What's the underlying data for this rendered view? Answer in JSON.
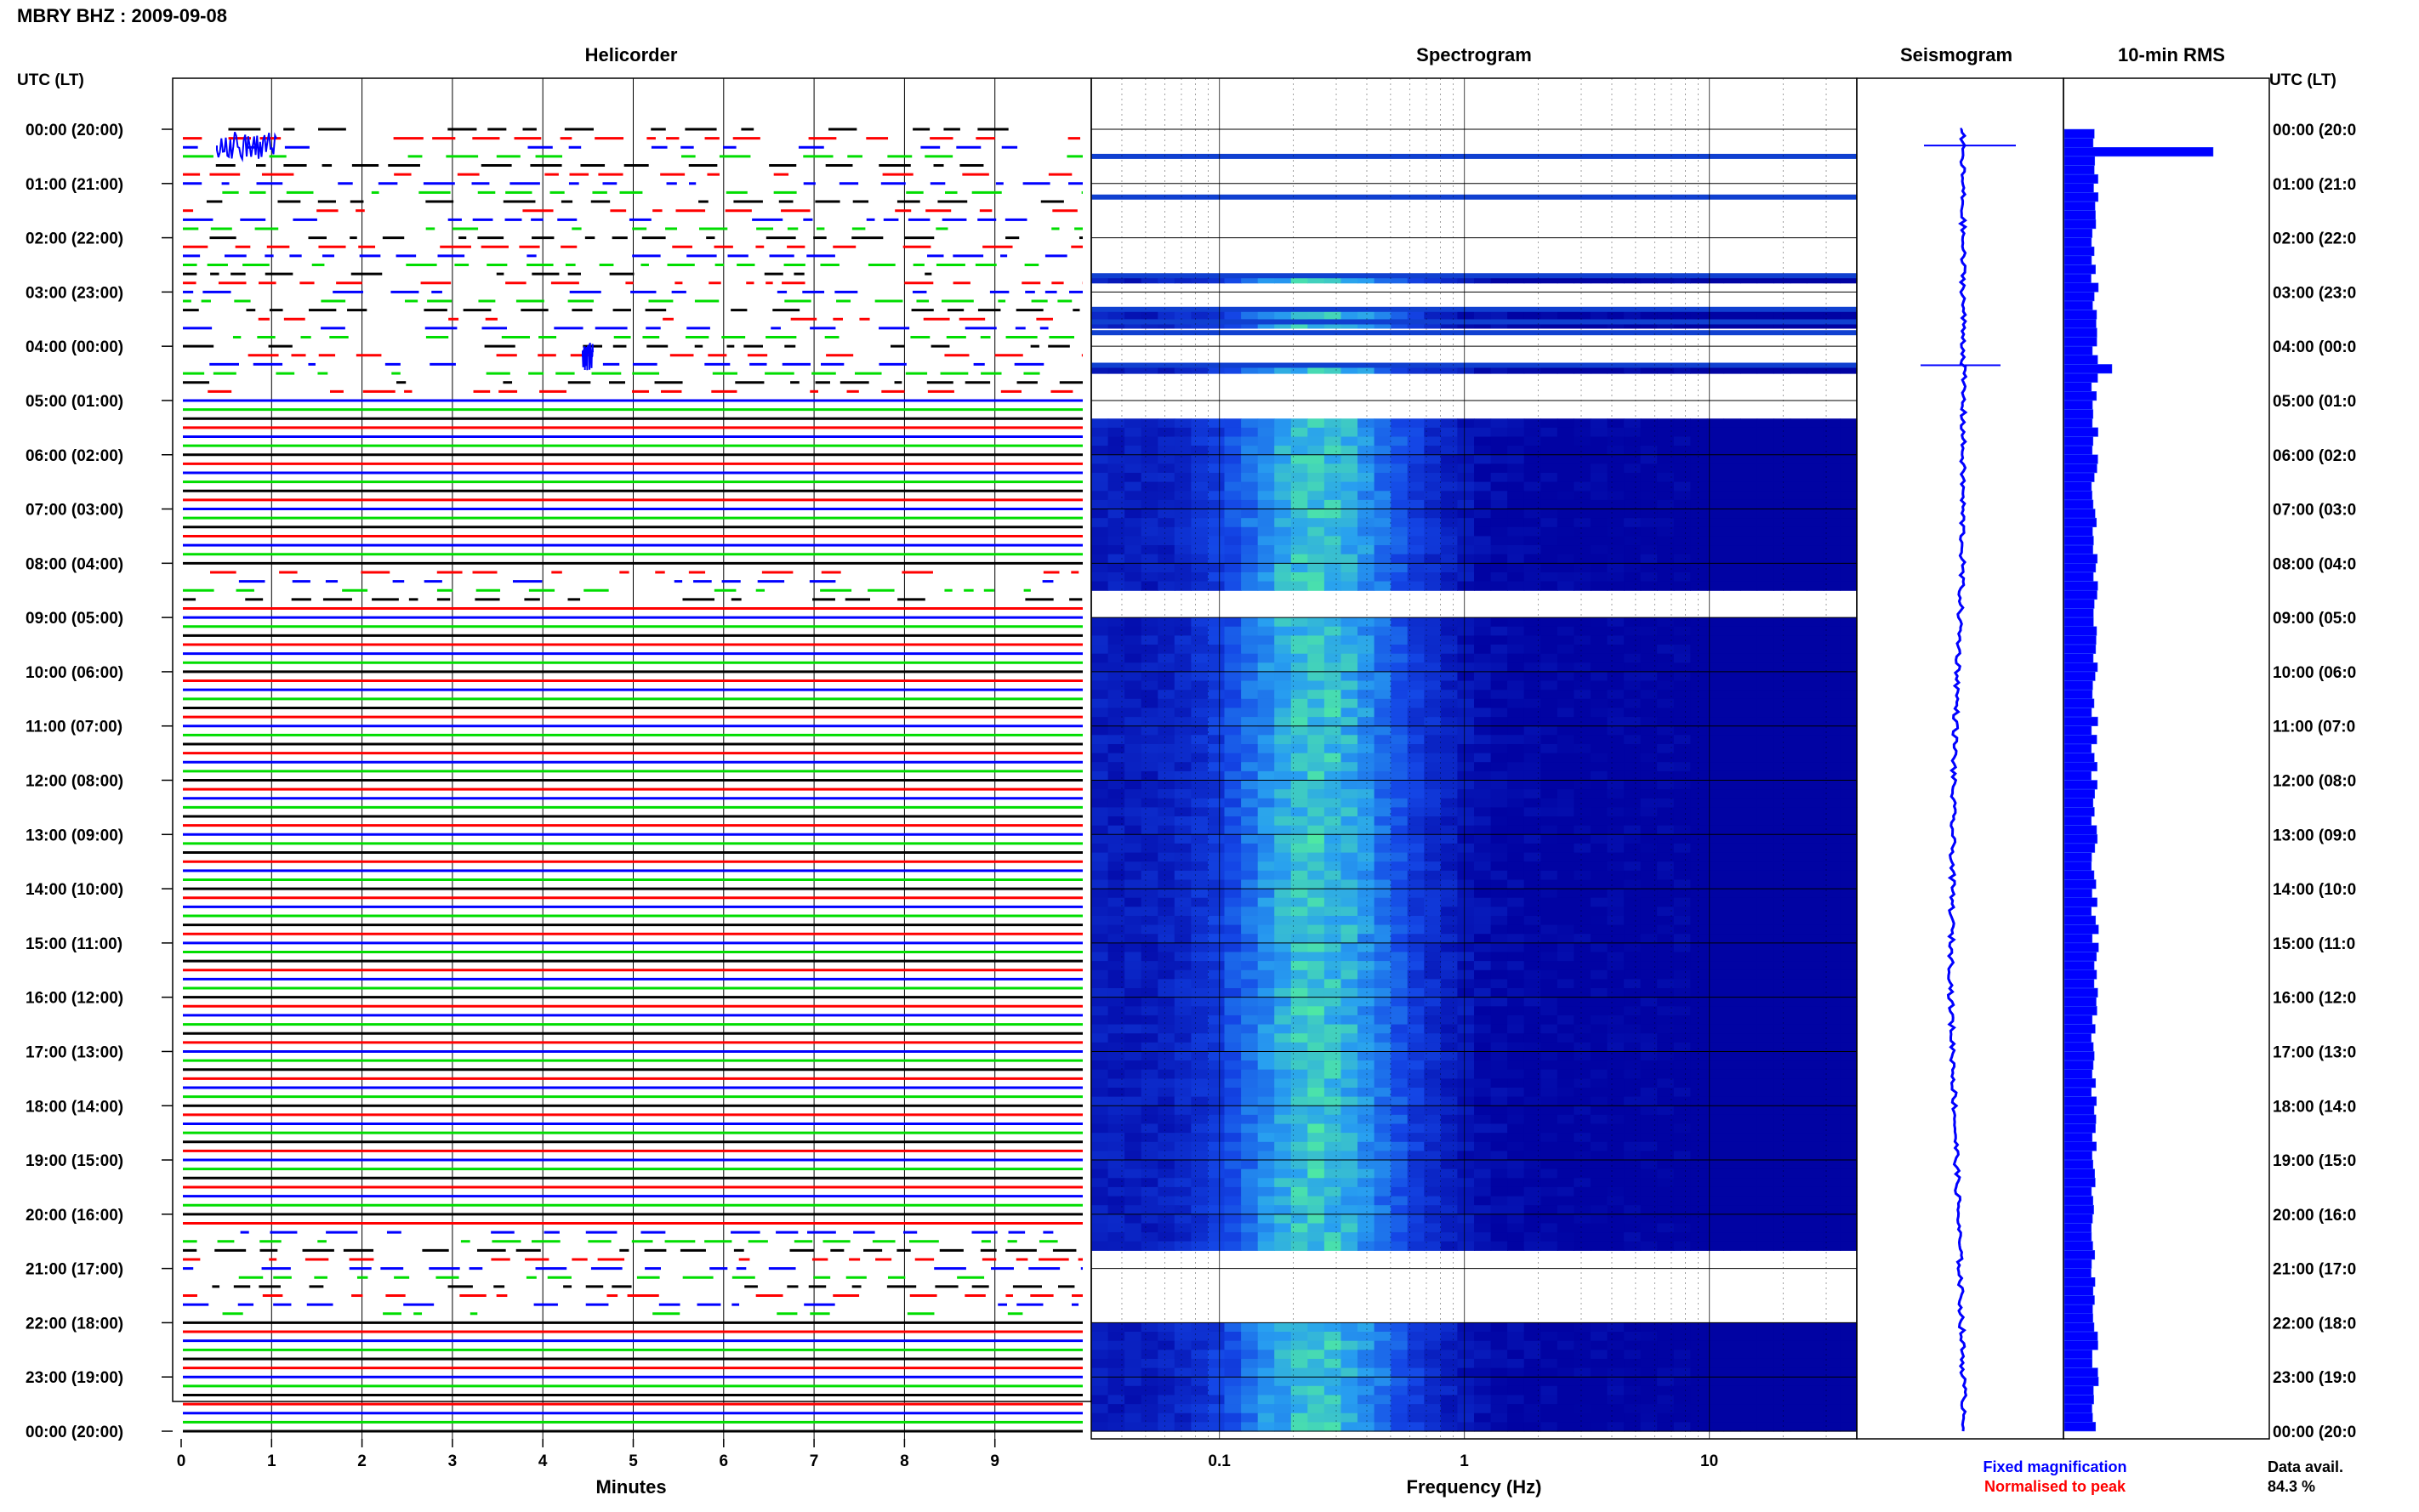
{
  "header": {
    "station_title": "MBRY BHZ : 2009-09-08"
  },
  "panels": {
    "helicorder_title": "Helicorder",
    "spectrogram_title": "Spectrogram",
    "seismogram_title": "Seismogram",
    "rms_title": "10-min RMS"
  },
  "axes": {
    "left_header": "UTC (LT)",
    "right_header": "UTC (LT)",
    "time_labels": [
      "00:00 (20:00)",
      "01:00 (21:00)",
      "02:00 (22:00)",
      "03:00 (23:00)",
      "04:00 (00:00)",
      "05:00 (01:00)",
      "06:00 (02:00)",
      "07:00 (03:00)",
      "08:00 (04:00)",
      "09:00 (05:00)",
      "10:00 (06:00)",
      "11:00 (07:00)",
      "12:00 (08:00)",
      "13:00 (09:00)",
      "14:00 (10:00)",
      "15:00 (11:00)",
      "16:00 (12:00)",
      "17:00 (13:00)",
      "18:00 (14:00)",
      "19:00 (15:00)",
      "20:00 (16:00)",
      "21:00 (17:00)",
      "22:00 (18:00)",
      "23:00 (19:00)",
      "00:00 (20:00)"
    ],
    "right_time_labels": [
      "00:00 (20:0",
      "01:00 (21:0",
      "02:00 (22:0",
      "03:00 (23:0",
      "04:00 (00:0",
      "05:00 (01:0",
      "06:00 (02:0",
      "07:00 (03:0",
      "08:00 (04:0",
      "09:00 (05:0",
      "10:00 (06:0",
      "11:00 (07:0",
      "12:00 (08:0",
      "13:00 (09:0",
      "14:00 (10:0",
      "15:00 (11:0",
      "16:00 (12:0",
      "17:00 (13:0",
      "18:00 (14:0",
      "19:00 (15:0",
      "20:00 (16:0",
      "21:00 (17:0",
      "22:00 (18:0",
      "23:00 (19:0",
      "00:00 (20:0"
    ],
    "minutes_ticks": [
      "0",
      "1",
      "2",
      "3",
      "4",
      "5",
      "6",
      "7",
      "8",
      "9"
    ],
    "minutes_label": "Minutes",
    "freq_ticks": [
      "0.1",
      "1",
      "10"
    ],
    "freq_label": "Frequency (Hz)"
  },
  "footer": {
    "legend_fixed": "Fixed magnification",
    "legend_normalised": "Normalised to peak",
    "data_avail_label": "Data avail.",
    "data_avail_value": "84.3 %"
  },
  "colors": {
    "trace_cycle": [
      "#000000",
      "#ff0000",
      "#0000ff",
      "#00dd00"
    ],
    "fixed_magnification": "#0000ff",
    "normalised_to_peak": "#ff0000",
    "rms_bar": "#0000ff",
    "spectrogram_low": "#0000a0",
    "spectrogram_high": "#60ff80"
  },
  "chart_data": [
    {
      "type": "line",
      "name_note": "helicorder",
      "x_unit": "minutes",
      "xlim": [
        0,
        10
      ],
      "rows_per_hour": 6,
      "hours": 24,
      "gaps_hours": [
        [
          0.0,
          5.0
        ],
        [
          8.1,
          8.8
        ],
        [
          20.2,
          21.9
        ]
      ],
      "events_hours": [
        0.3,
        4.2
      ]
    },
    {
      "type": "heatmap",
      "name_note": "spectrogram",
      "x_scale": "log",
      "xlim": [
        0.03,
        40
      ],
      "peak_band_hz": [
        0.15,
        0.4
      ],
      "missing_hours": [
        [
          0.0,
          0.45
        ],
        [
          0.5,
          1.2
        ],
        [
          1.3,
          2.65
        ],
        [
          2.75,
          3.3
        ],
        [
          3.35,
          3.45
        ],
        [
          3.6,
          3.7
        ],
        [
          3.8,
          4.3
        ],
        [
          4.4,
          5.2
        ],
        [
          8.35,
          8.9
        ],
        [
          20.55,
          21.05
        ],
        [
          21.15,
          21.9
        ]
      ]
    },
    {
      "type": "line",
      "name_note": "seismogram",
      "trend_hours": [
        0,
        4,
        8,
        12,
        16,
        20,
        24
      ],
      "trend_values": [
        0.0,
        -0.05,
        0.0,
        0.35,
        0.45,
        0.15,
        -0.1
      ]
    },
    {
      "type": "bar",
      "name_note": "10-min RMS",
      "hours_of_spikes": [
        0.4,
        4.4
      ],
      "spike_values": [
        1.0,
        0.32
      ],
      "baseline_value": 0.2
    }
  ]
}
